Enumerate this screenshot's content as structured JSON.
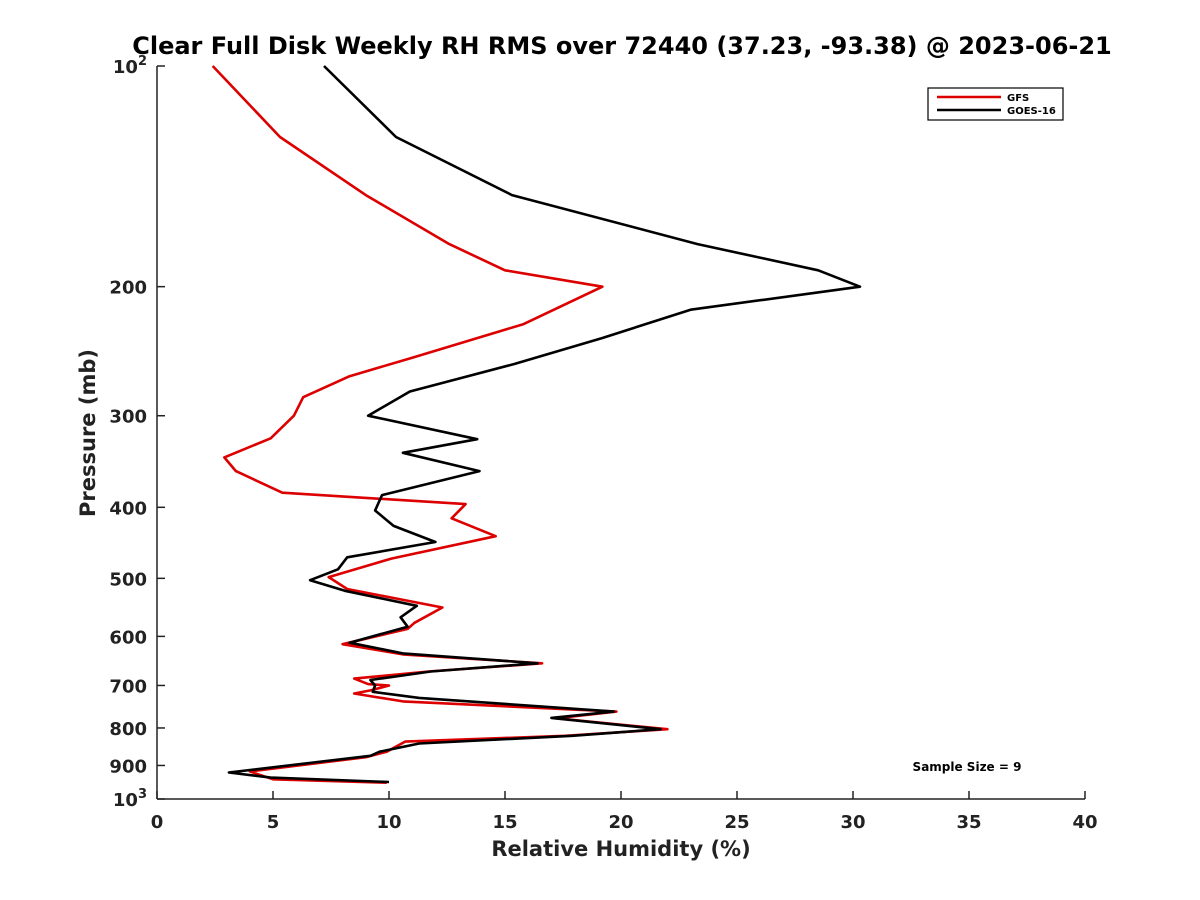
{
  "chart_data": {
    "type": "line",
    "title": "Clear Full Disk Weekly RH RMS over 72440 (37.23, -93.38) @ 2023-06-21",
    "xlabel": "Relative Humidity (%)",
    "ylabel": "Pressure (mb)",
    "xlim": [
      0,
      40
    ],
    "ylim": [
      100,
      1000
    ],
    "y_scale": "log",
    "y_reversed": true,
    "x_ticks": [
      "0",
      "5",
      "10",
      "15",
      "20",
      "25",
      "30",
      "35",
      "40"
    ],
    "y_ticks": [
      {
        "value": 100,
        "label": "10",
        "sup": "2"
      },
      {
        "value": 200,
        "label": "200",
        "sup": ""
      },
      {
        "value": 300,
        "label": "300",
        "sup": ""
      },
      {
        "value": 400,
        "label": "400",
        "sup": ""
      },
      {
        "value": 500,
        "label": "500",
        "sup": ""
      },
      {
        "value": 600,
        "label": "600",
        "sup": ""
      },
      {
        "value": 700,
        "label": "700",
        "sup": ""
      },
      {
        "value": 800,
        "label": "800",
        "sup": ""
      },
      {
        "value": 900,
        "label": "900",
        "sup": ""
      },
      {
        "value": 1000,
        "label": "10",
        "sup": "3"
      }
    ],
    "legend_position": "top-right",
    "annotation": "Sample Size = 9",
    "series": [
      {
        "name": "GFS",
        "color": "#dd0000",
        "points": [
          [
            2.4,
            100
          ],
          [
            5.3,
            125
          ],
          [
            9.0,
            150
          ],
          [
            12.6,
            175
          ],
          [
            15.0,
            190
          ],
          [
            19.2,
            200
          ],
          [
            15.8,
            225
          ],
          [
            11.0,
            250
          ],
          [
            8.3,
            265
          ],
          [
            6.3,
            283
          ],
          [
            5.9,
            300
          ],
          [
            4.9,
            322
          ],
          [
            2.9,
            342
          ],
          [
            3.4,
            357
          ],
          [
            5.4,
            382
          ],
          [
            13.3,
            396
          ],
          [
            12.7,
            414
          ],
          [
            14.6,
            438
          ],
          [
            10.1,
            470
          ],
          [
            7.4,
            498
          ],
          [
            8.2,
            517
          ],
          [
            12.3,
            548
          ],
          [
            11.1,
            575
          ],
          [
            10.8,
            586
          ],
          [
            8.0,
            615
          ],
          [
            10.6,
            635
          ],
          [
            16.6,
            653
          ],
          [
            11.7,
            670
          ],
          [
            8.5,
            685
          ],
          [
            9.1,
            697
          ],
          [
            10.0,
            700
          ],
          [
            9.2,
            711
          ],
          [
            8.5,
            718
          ],
          [
            10.6,
            736
          ],
          [
            19.8,
            760
          ],
          [
            17.2,
            776
          ],
          [
            22.0,
            803
          ],
          [
            17.6,
            820
          ],
          [
            10.7,
            835
          ],
          [
            9.9,
            862
          ],
          [
            9.0,
            877
          ],
          [
            4.0,
            917
          ],
          [
            5.0,
            940
          ],
          [
            9.9,
            950
          ]
        ]
      },
      {
        "name": "GOES-16",
        "color": "#000000",
        "points": [
          [
            7.2,
            100
          ],
          [
            10.3,
            125
          ],
          [
            15.3,
            150
          ],
          [
            23.3,
            175
          ],
          [
            28.5,
            190
          ],
          [
            30.3,
            200
          ],
          [
            23.0,
            215
          ],
          [
            19.2,
            235
          ],
          [
            15.4,
            255
          ],
          [
            10.9,
            278
          ],
          [
            9.1,
            300
          ],
          [
            13.8,
            323
          ],
          [
            10.6,
            337
          ],
          [
            13.9,
            357
          ],
          [
            9.7,
            385
          ],
          [
            9.4,
            404
          ],
          [
            10.2,
            424
          ],
          [
            12.0,
            446
          ],
          [
            8.2,
            468
          ],
          [
            7.8,
            486
          ],
          [
            6.6,
            503
          ],
          [
            8.1,
            520
          ],
          [
            11.2,
            545
          ],
          [
            10.5,
            565
          ],
          [
            10.8,
            582
          ],
          [
            8.3,
            612
          ],
          [
            10.6,
            633
          ],
          [
            16.4,
            653
          ],
          [
            11.8,
            670
          ],
          [
            9.2,
            688
          ],
          [
            9.4,
            700
          ],
          [
            9.3,
            714
          ],
          [
            11.3,
            728
          ],
          [
            19.7,
            760
          ],
          [
            17.0,
            775
          ],
          [
            21.7,
            803
          ],
          [
            17.9,
            820
          ],
          [
            11.3,
            840
          ],
          [
            9.6,
            862
          ],
          [
            9.2,
            873
          ],
          [
            3.1,
            920
          ],
          [
            4.9,
            935
          ],
          [
            10.0,
            948
          ]
        ]
      }
    ]
  }
}
